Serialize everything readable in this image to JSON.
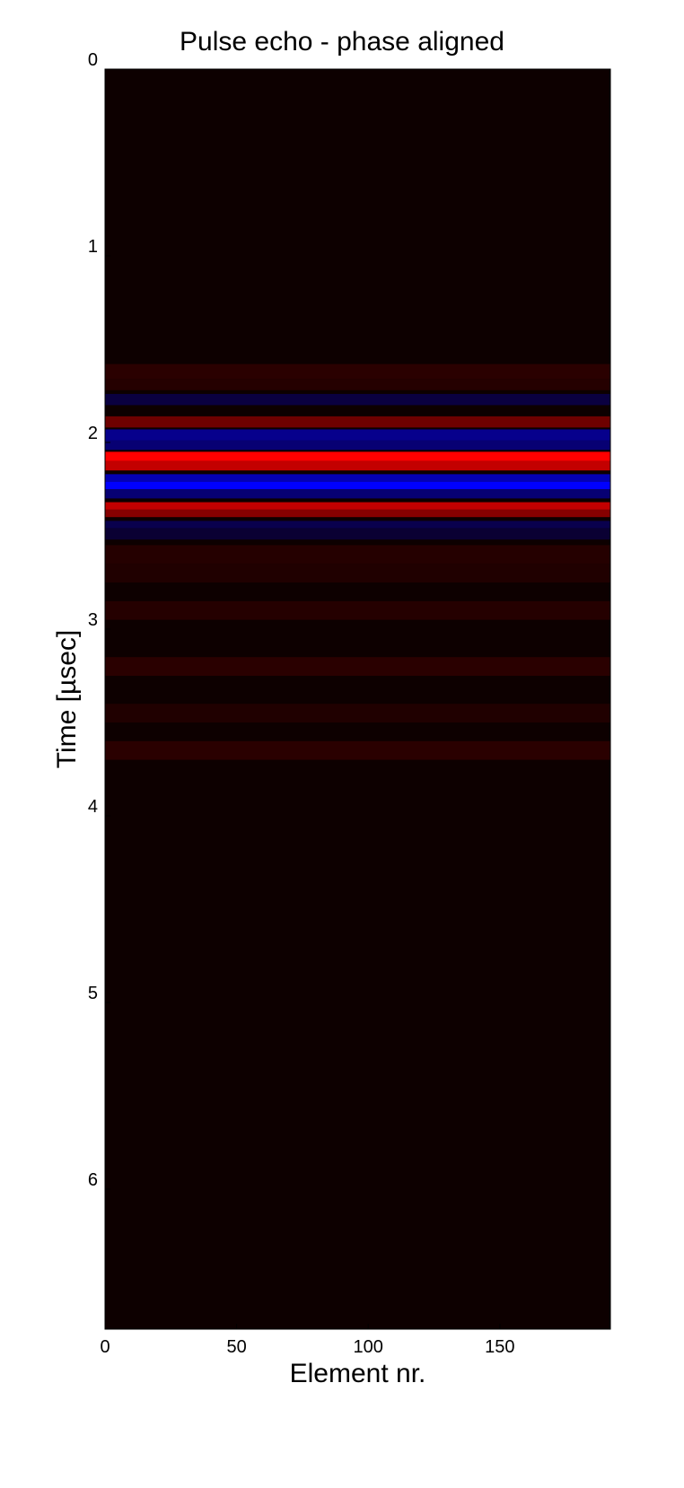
{
  "chart_data": {
    "type": "heatmap",
    "title": "Pulse echo - phase aligned",
    "xlabel": "Element nr.",
    "ylabel": "Time [µsec]",
    "xlim": [
      0,
      192
    ],
    "ylim": [
      0,
      6.75
    ],
    "y_inverted": true,
    "x_ticks": [
      0,
      50,
      100,
      150
    ],
    "y_ticks": [
      0,
      1,
      2,
      3,
      4,
      5,
      6
    ],
    "colormap": {
      "positive": "#ff0000",
      "zero": "#0d0000",
      "negative": "#0000ff"
    },
    "grid": false,
    "legend": "none",
    "bands": [
      {
        "t_start": 1.58,
        "t_end": 1.66,
        "value": 0.12
      },
      {
        "t_start": 1.66,
        "t_end": 1.72,
        "value": 0.1
      },
      {
        "t_start": 1.74,
        "t_end": 1.8,
        "value": -0.25
      },
      {
        "t_start": 1.86,
        "t_end": 1.92,
        "value": 0.4
      },
      {
        "t_start": 1.93,
        "t_end": 1.99,
        "value": -0.55
      },
      {
        "t_start": 1.99,
        "t_end": 2.04,
        "value": -0.45
      },
      {
        "t_start": 2.05,
        "t_end": 2.1,
        "value": 1.0
      },
      {
        "t_start": 2.1,
        "t_end": 2.15,
        "value": 0.75
      },
      {
        "t_start": 2.17,
        "t_end": 2.21,
        "value": -0.7
      },
      {
        "t_start": 2.21,
        "t_end": 2.25,
        "value": -1.0
      },
      {
        "t_start": 2.25,
        "t_end": 2.3,
        "value": -0.45
      },
      {
        "t_start": 2.32,
        "t_end": 2.36,
        "value": 0.75
      },
      {
        "t_start": 2.36,
        "t_end": 2.4,
        "value": 0.5
      },
      {
        "t_start": 2.42,
        "t_end": 2.46,
        "value": -0.3
      },
      {
        "t_start": 2.46,
        "t_end": 2.52,
        "value": -0.2
      },
      {
        "t_start": 2.55,
        "t_end": 2.65,
        "value": 0.1
      },
      {
        "t_start": 2.65,
        "t_end": 2.75,
        "value": 0.08
      },
      {
        "t_start": 2.85,
        "t_end": 2.95,
        "value": 0.1
      },
      {
        "t_start": 3.15,
        "t_end": 3.25,
        "value": 0.12
      },
      {
        "t_start": 3.4,
        "t_end": 3.5,
        "value": 0.08
      },
      {
        "t_start": 3.6,
        "t_end": 3.7,
        "value": 0.12
      }
    ]
  }
}
